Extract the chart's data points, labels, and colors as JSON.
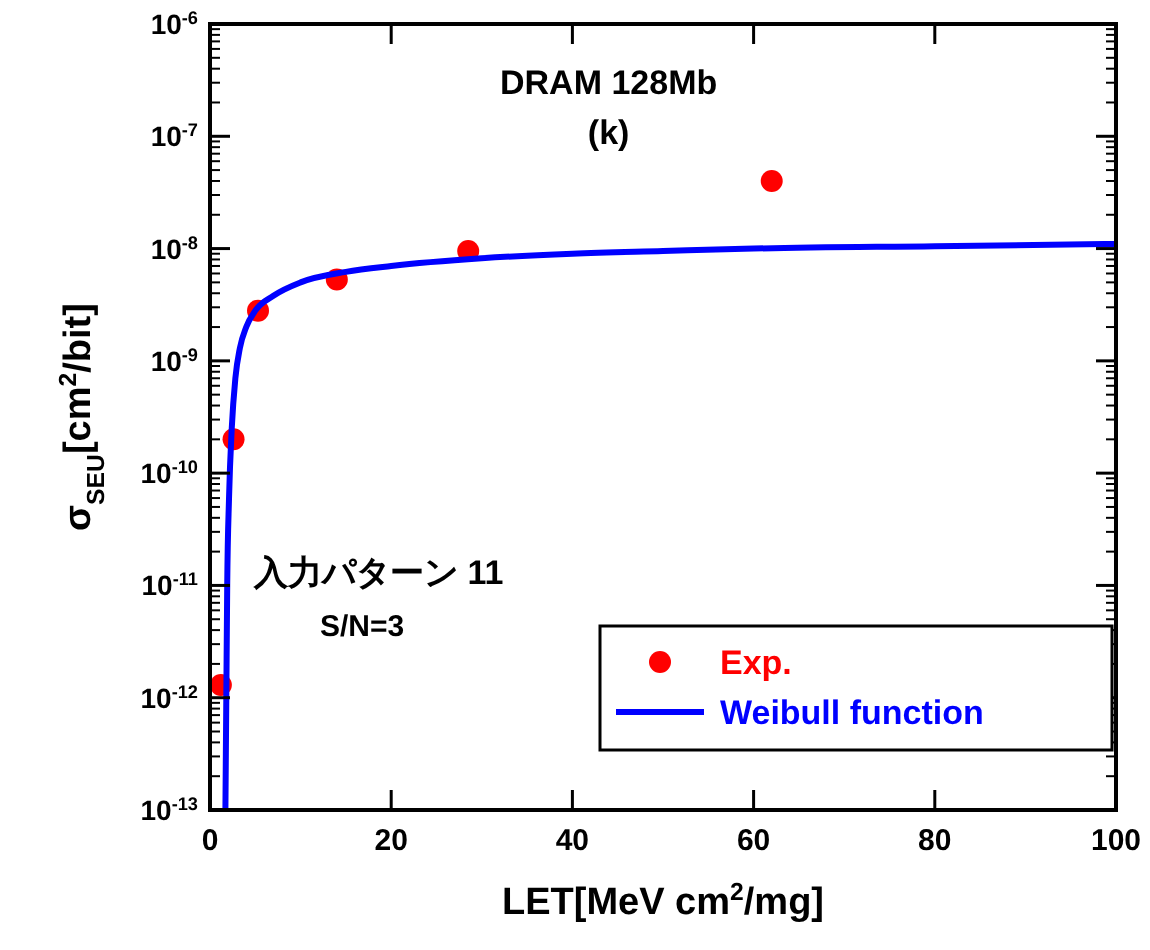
{
  "chart_data": {
    "type": "scatter",
    "title": "DRAM  128Mb",
    "subtitle": "(k)",
    "xlabel": "LET[MeV cm$^{2}$/mg]",
    "ylabel": "σ$_{SEU}$[cm$^{2}$/bit]",
    "annotations": [
      "入力パターン 11",
      "S/N=3"
    ],
    "log": "y",
    "grid": false,
    "legend": "bottom right",
    "xlim": [
      0,
      100
    ],
    "xticks": [
      0,
      20,
      40,
      60,
      80,
      100
    ],
    "ylim": [
      1e-13,
      1e-06
    ],
    "yticks": [
      {
        "value": 1e-13,
        "label": "10$^{-13}$"
      },
      {
        "value": 1e-12,
        "label": "10$^{-12}$"
      },
      {
        "value": 1e-11,
        "label": "10$^{-11}$"
      },
      {
        "value": 1e-10,
        "label": "10$^{-10}$"
      },
      {
        "value": 1e-09,
        "label": "10$^{-9}$"
      },
      {
        "value": 1e-08,
        "label": "10$^{-8}$"
      },
      {
        "value": 1e-07,
        "label": "10$^{-7}$"
      },
      {
        "value": 1e-06,
        "label": "10$^{-6}$"
      }
    ],
    "series": [
      {
        "name": "Exp.",
        "marker": "circle",
        "color": "#ff0000",
        "x": [
          1.2,
          2.6,
          5.3,
          14,
          28.5,
          62
        ],
        "values": [
          1.3e-12,
          2e-10,
          2.8e-09,
          5.3e-09,
          9.5e-09,
          4e-08
        ]
      },
      {
        "name": "Weibull function",
        "type": "line",
        "color": "#0000ff",
        "line_style": "solid",
        "x": [
          1.7,
          1.8,
          1.9,
          2.1,
          2.4,
          2.8,
          3.3,
          4,
          5,
          7,
          10,
          15,
          20,
          30,
          40,
          50,
          60,
          80,
          100
        ],
        "values": [
          1e-13,
          1e-12,
          1e-11,
          6e-11,
          2.5e-10,
          7e-10,
          1.3e-09,
          2e-09,
          2.8e-09,
          3.8e-09,
          5e-09,
          6.2e-09,
          7e-09,
          8.2e-09,
          9e-09,
          9.5e-09,
          1e-08,
          1.05e-08,
          1.1e-08
        ]
      }
    ]
  }
}
